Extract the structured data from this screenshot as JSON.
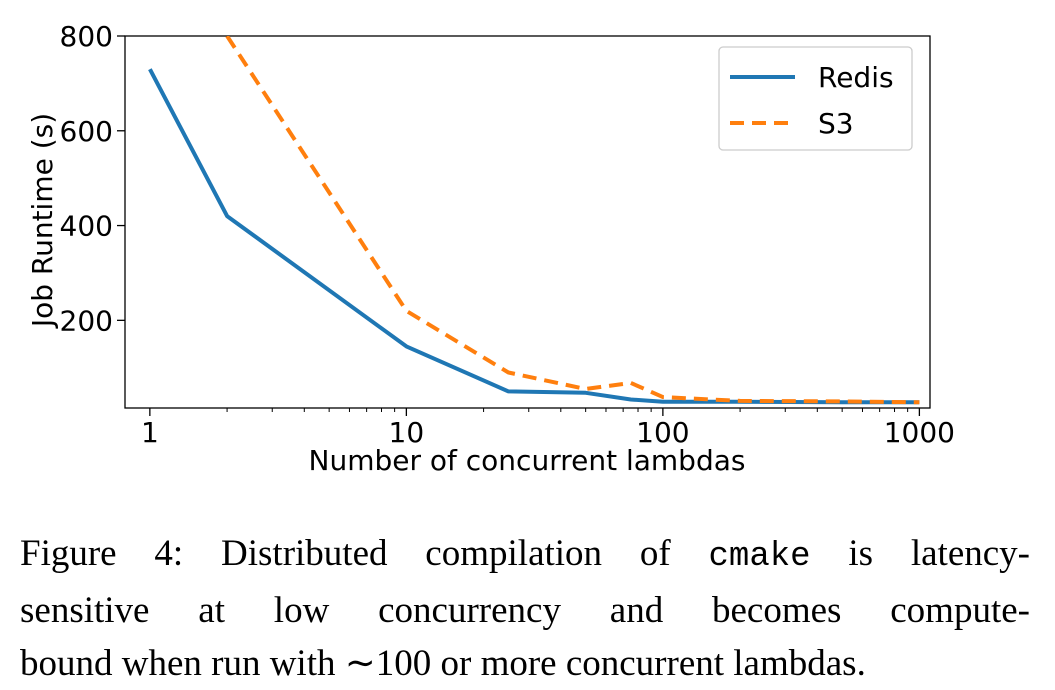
{
  "chart_data": {
    "type": "line",
    "xscale": "log",
    "xlabel": "Number of concurrent lambdas",
    "ylabel": "Job Runtime (s)",
    "xlim": [
      0.8,
      1100
    ],
    "ylim": [
      15,
      800
    ],
    "xticks": [
      1,
      10,
      100,
      1000
    ],
    "xtick_labels": [
      "1",
      "10",
      "100",
      "1000"
    ],
    "yticks": [
      200,
      400,
      600,
      800
    ],
    "ytick_labels": [
      "200",
      "400",
      "600",
      "800"
    ],
    "grid": false,
    "legend_position": "top-right",
    "series": [
      {
        "name": "Redis",
        "color": "#1f77b4",
        "style": "solid",
        "x": [
          1,
          2,
          10,
          25,
          50,
          75,
          100,
          200,
          500,
          1000
        ],
        "y": [
          730,
          420,
          145,
          50,
          47,
          33,
          28,
          28,
          27,
          27
        ]
      },
      {
        "name": "S3",
        "color": "#ff7f0e",
        "style": "dashed",
        "x": [
          2,
          10,
          25,
          50,
          75,
          100,
          200,
          500,
          1000
        ],
        "y": [
          800,
          220,
          90,
          55,
          68,
          38,
          30,
          29,
          27
        ]
      }
    ]
  },
  "caption": {
    "line1_a": "Figure 4:  Distributed compilation of ",
    "line1_code": "cmake",
    "line1_b": " is latency-",
    "line2": "sensitive at low concurrency and becomes compute-",
    "line3": "bound when run with ∼100 or more concurrent lambdas."
  }
}
